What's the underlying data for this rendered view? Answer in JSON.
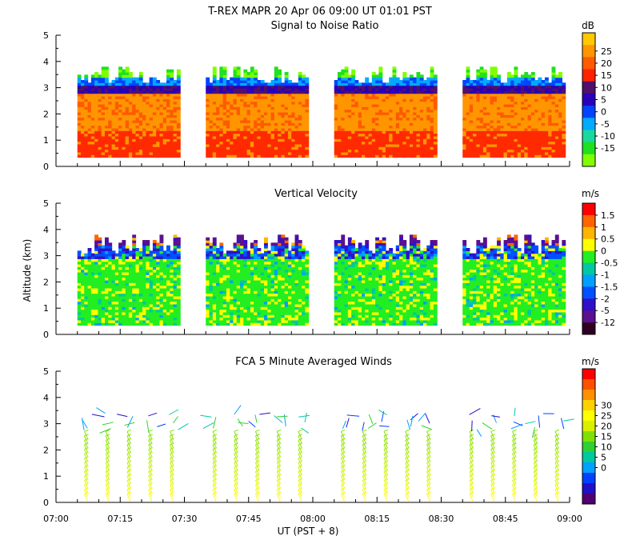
{
  "header": {
    "title": "T-REX   MAPR 20 Apr 06   09:00 UT   01:01   PST",
    "subtitle": "Signal to Noise Ratio"
  },
  "chart_data": [
    {
      "type": "heatmap",
      "title": "Signal to Noise Ratio",
      "ylabel": "Altitude (km)",
      "ylim": [
        0,
        5
      ],
      "yticks": [
        "0",
        "1",
        "2",
        "3",
        "4",
        "5"
      ],
      "colorbar": {
        "unit": "dB",
        "labels": [
          "25",
          "20",
          "15",
          "10",
          "5",
          "0",
          "-5",
          "-10",
          "-15"
        ],
        "colors": [
          "#ffc800",
          "#ff9600",
          "#ff5a00",
          "#ff2000",
          "#50106a",
          "#2a00b8",
          "#0044ff",
          "#00aaff",
          "#18d8a0",
          "#20e020",
          "#80ff00"
        ]
      },
      "segments": [
        {
          "start": "07:05",
          "end": "07:29"
        },
        {
          "start": "07:35",
          "end": "07:59"
        },
        {
          "start": "08:05",
          "end": "08:29"
        },
        {
          "start": "08:35",
          "end": "08:59"
        }
      ],
      "layers": [
        {
          "from": 0.35,
          "to": 1.3,
          "desc": "15"
        },
        {
          "from": 1.3,
          "to": 2.7,
          "desc": "20"
        },
        {
          "from": 2.7,
          "to": 3.0,
          "desc": "5"
        },
        {
          "from": 3.0,
          "to": 3.3,
          "desc": "0"
        },
        {
          "from": 3.3,
          "to": 3.7,
          "desc": "-10"
        }
      ]
    },
    {
      "type": "heatmap",
      "title": "Vertical Velocity",
      "ylabel": "Altitude (km)",
      "ylim": [
        0,
        5
      ],
      "yticks": [
        "0",
        "1",
        "2",
        "3",
        "4",
        "5"
      ],
      "colorbar": {
        "unit": "m/s",
        "labels": [
          "1.5",
          "1",
          "0.5",
          "0",
          "-0.5",
          "-1",
          "-1.5",
          "-2",
          "-5",
          "-12"
        ],
        "colors": [
          "#ff0000",
          "#ff6400",
          "#ffb400",
          "#ffff00",
          "#22ee22",
          "#00c8a0",
          "#00a0ff",
          "#0050ff",
          "#3010c8",
          "#5a1090",
          "#300020"
        ]
      },
      "segments": [
        {
          "start": "07:05",
          "end": "07:29"
        },
        {
          "start": "07:35",
          "end": "07:59"
        },
        {
          "start": "08:05",
          "end": "08:29"
        },
        {
          "start": "08:35",
          "end": "08:59"
        }
      ],
      "layers": [
        {
          "from": 0.35,
          "to": 2.8,
          "desc": "-0.5 / 0"
        },
        {
          "from": 2.8,
          "to": 3.3,
          "desc": "-1 / -2"
        },
        {
          "from": 3.3,
          "to": 3.7,
          "desc": "-5"
        }
      ]
    },
    {
      "type": "scatter",
      "title": "FCA 5 Minute Averaged Winds",
      "xlabel": "UT  (PST + 8)",
      "ylabel": "Altitude (km)",
      "ylim": [
        0,
        5
      ],
      "yticks": [
        "0",
        "1",
        "2",
        "3",
        "4",
        "5"
      ],
      "xticks": [
        "07:00",
        "07:15",
        "07:30",
        "07:45",
        "08:00",
        "08:15",
        "08:30",
        "08:45",
        "09:00"
      ],
      "colorbar": {
        "unit": "m/s",
        "labels": [
          "30",
          "25",
          "20",
          "15",
          "10",
          "5",
          "0"
        ],
        "colors": [
          "#ff0000",
          "#ff5000",
          "#ff9000",
          "#ffd000",
          "#ffff00",
          "#d8f000",
          "#80e000",
          "#30d030",
          "#00c8a0",
          "#00a0ff",
          "#0040ff",
          "#2010c8",
          "#500070"
        ]
      },
      "profile_times": [
        "07:07",
        "07:12",
        "07:17",
        "07:22",
        "07:27",
        "07:37",
        "07:42",
        "07:47",
        "07:52",
        "07:57",
        "08:07",
        "08:12",
        "08:17",
        "08:22",
        "08:27",
        "08:37",
        "08:42",
        "08:47",
        "08:52",
        "08:57"
      ],
      "altitude_range_km": [
        0,
        3.6
      ]
    }
  ]
}
